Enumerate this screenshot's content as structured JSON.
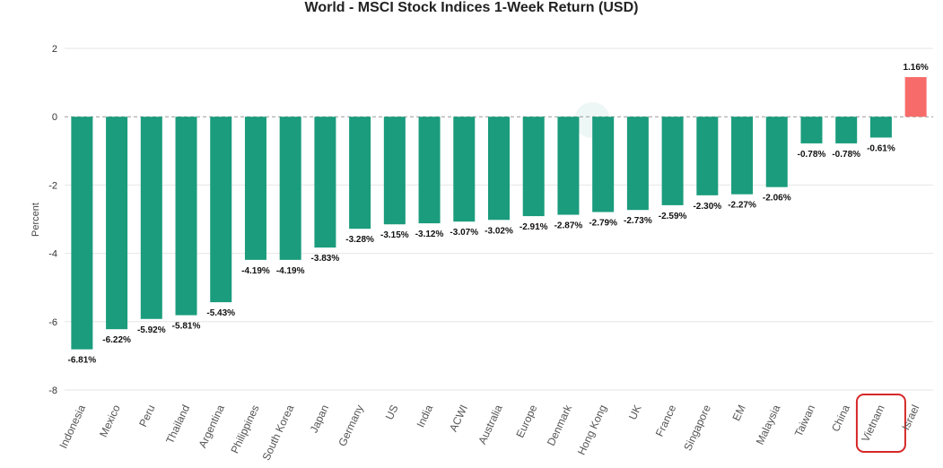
{
  "chart_data": {
    "type": "bar",
    "title": "World - MSCI Stock Indices 1-Week Return (USD)",
    "xlabel": "",
    "ylabel": "Percent",
    "ylim": [
      -8,
      2
    ],
    "yticks": [
      2,
      0,
      -2,
      -4,
      -6,
      -8
    ],
    "grid": true,
    "legend": "none",
    "categories": [
      "Indonesia",
      "Mexico",
      "Peru",
      "Thailand",
      "Argentina",
      "Philippines",
      "South Korea",
      "Japan",
      "Germany",
      "US",
      "India",
      "ACWI",
      "Australia",
      "Europe",
      "Denmark",
      "Hong Kong",
      "UK",
      "France",
      "Singapore",
      "EM",
      "Malaysia",
      "Taiwan",
      "China",
      "Vietnam",
      "Israel"
    ],
    "values": [
      -6.81,
      -6.22,
      -5.92,
      -5.81,
      -5.43,
      -4.19,
      -4.19,
      -3.83,
      -3.28,
      -3.15,
      -3.12,
      -3.07,
      -3.02,
      -2.91,
      -2.87,
      -2.79,
      -2.73,
      -2.59,
      -2.3,
      -2.27,
      -2.06,
      -0.78,
      -0.78,
      -0.61,
      1.16
    ],
    "data_labels": [
      "-6.81%",
      "-6.22%",
      "-5.92%",
      "-5.81%",
      "-5.43%",
      "-4.19%",
      "-4.19%",
      "-3.83%",
      "-3.28%",
      "-3.15%",
      "-3.12%",
      "-3.07%",
      "-3.02%",
      "-2.91%",
      "-2.87%",
      "-2.79%",
      "-2.73%",
      "-2.59%",
      "-2.30%",
      "-2.27%",
      "-2.06%",
      "-0.78%",
      "-0.78%",
      "-0.61%",
      "1.16%"
    ],
    "highlighted_category": "Vietnam",
    "colors": {
      "negative": "#1a9c7d",
      "positive": "#f76b6b",
      "highlight_box": "#d62728",
      "grid": "#e6e6e6",
      "zero_line": "#999999"
    }
  }
}
